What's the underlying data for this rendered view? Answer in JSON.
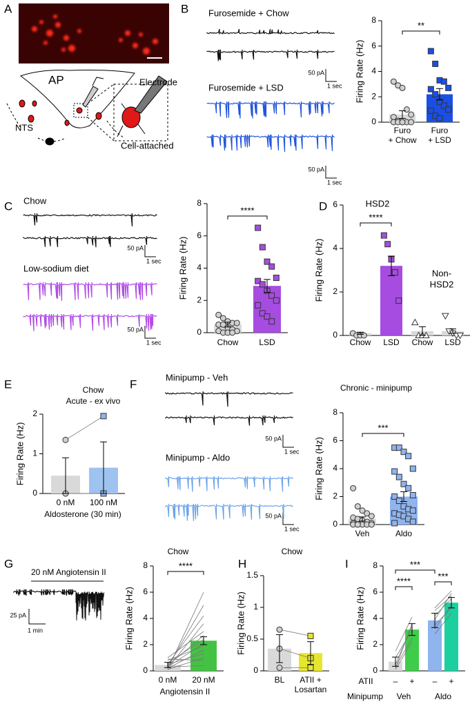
{
  "panel_labels": [
    "A",
    "B",
    "C",
    "D",
    "E",
    "F",
    "G",
    "H",
    "I"
  ],
  "diagram": {
    "labels": [
      "AP",
      "NTS",
      "Electrode",
      "Cell-attached"
    ]
  },
  "traces": [
    "Furosemide + Chow",
    "Furosemide + LSD",
    "Chow",
    "Low-sodium diet",
    "Minipump - Veh",
    "Minipump - Aldo",
    "20 nM Angiotensin II"
  ],
  "scale_bars": [
    {
      "amplitude": "50 pA",
      "time": "1 sec"
    },
    {
      "amplitude": "50 pA",
      "time": "1 sec"
    },
    {
      "amplitude": "50 pA",
      "time": "1 sec"
    },
    {
      "amplitude": "50 pA",
      "time": "1 sec"
    },
    {
      "amplitude": "50 pA",
      "time": "1 sec"
    },
    {
      "amplitude": "50 pA",
      "time": "1 sec"
    },
    {
      "amplitude": "25 pA",
      "time": "1 min"
    }
  ],
  "chart_data": [
    {
      "type": "bar",
      "ylabel": "Firing Rate (Hz)",
      "categories": [
        [
          "Furo",
          "+ Chow"
        ],
        [
          "Furo",
          "+ LSD"
        ]
      ],
      "values": [
        0.6,
        2.2
      ],
      "errors": [
        0.3,
        0.45
      ],
      "colors": [
        "#d9d9d9",
        "#1a4fe6"
      ],
      "points": [
        [
          3.2,
          2.9,
          2.7,
          1.0,
          0.6,
          0.4,
          0.1,
          0,
          0,
          0,
          0,
          0,
          0
        ],
        [
          5.6,
          4.6,
          3.3,
          3.2,
          2.7,
          2.6,
          2.2,
          1.6,
          1.3,
          1.0,
          0.9,
          0.5,
          0.3
        ]
      ],
      "markers": [
        "circle",
        "square"
      ],
      "point_colors": [
        "#d0d0d0",
        "#1a4fe6"
      ],
      "ylim": [
        0,
        8
      ],
      "yticks": [
        0,
        2,
        4,
        6,
        8
      ],
      "significance": [
        {
          "groups": [
            0,
            1
          ],
          "label": "**"
        }
      ]
    },
    {
      "type": "bar",
      "ylabel": "Firing Rate (Hz)",
      "categories": [
        "Chow",
        "LSD"
      ],
      "values": [
        0.5,
        2.9
      ],
      "errors": [
        0.15,
        0.4
      ],
      "colors": [
        "#d9d9d9",
        "#a64ce0"
      ],
      "points": [
        [
          1.1,
          0.9,
          0.7,
          0.6,
          0.6,
          0.5,
          0.5,
          0.3,
          0.2,
          0.1,
          0.1,
          0,
          0,
          0
        ],
        [
          6.5,
          5.3,
          4.4,
          4.1,
          3.4,
          3.2,
          3.0,
          2.6,
          2.3,
          2.0,
          1.7,
          1.2,
          1.0,
          0.7
        ]
      ],
      "markers": [
        "circle",
        "square"
      ],
      "point_colors": [
        "#d0d0d0",
        "#a64ce0"
      ],
      "ylim": [
        0,
        8
      ],
      "yticks": [
        0,
        2,
        4,
        6,
        8
      ],
      "significance": [
        {
          "groups": [
            0,
            1
          ],
          "label": "****"
        }
      ]
    },
    {
      "type": "bar",
      "ylabel": "Firing Rate (Hz)",
      "categories": [
        "Chow",
        "LSD",
        "Chow",
        "LSD"
      ],
      "values": [
        0.1,
        3.2,
        0.2,
        0.2
      ],
      "errors": [
        0.05,
        0.45,
        0.2,
        0.1
      ],
      "colors": [
        "#d9d9d9",
        "#a64ce0",
        "#d9d9d9",
        "#d9d9d9"
      ],
      "points": [
        [
          0.1,
          0,
          0,
          0
        ],
        [
          4.6,
          4.2,
          3.5,
          2.9,
          1.6
        ],
        [
          0.6,
          0,
          0,
          0
        ],
        [
          0.9,
          0.2,
          0.1,
          0,
          0
        ]
      ],
      "markers": [
        "circle",
        "square",
        "triangle-up",
        "triangle-down"
      ],
      "point_colors": [
        "#d0d0d0",
        "#a64ce0",
        "#ffffff",
        "#ffffff"
      ],
      "ylim": [
        0,
        6
      ],
      "yticks": [
        0,
        2,
        4,
        6
      ],
      "significance": [
        {
          "groups": [
            0,
            1
          ],
          "label": "****"
        }
      ],
      "annotations": [
        [
          "HSD2"
        ],
        [
          "Non-",
          "HSD2"
        ]
      ]
    },
    {
      "type": "bar",
      "title": "Chow",
      "subtitle": "Acute - ex vivo",
      "ylabel": "Firing Rate (Hz)",
      "xlabel": "Aldosterone (30 min)",
      "categories": [
        "0 nM",
        "100 nM"
      ],
      "values": [
        0.45,
        0.65
      ],
      "errors": [
        0.45,
        0.65
      ],
      "colors": [
        "#d9d9d9",
        "#9fc3f0"
      ],
      "points": [
        [
          1.35,
          0,
          0
        ],
        [
          1.95,
          0,
          0
        ]
      ],
      "markers": [
        "circle",
        "square"
      ],
      "point_colors": [
        "#d0d0d0",
        "#8fb4ee"
      ],
      "pairs": [
        [
          0,
          1
        ]
      ],
      "ylim": [
        0,
        2
      ],
      "yticks": [
        0,
        1,
        2
      ]
    },
    {
      "type": "bar",
      "title": "Chronic - minipump",
      "ylabel": "Firing Rate (Hz)",
      "categories": [
        "Veh",
        "Aldo"
      ],
      "values": [
        0.4,
        2.0
      ],
      "errors": [
        0.15,
        0.35
      ],
      "colors": [
        "#d9d9d9",
        "#8fb4ee"
      ],
      "points": [
        [
          2.6,
          1.3,
          1.0,
          0.8,
          0.6,
          0.5,
          0.4,
          0.3,
          0.2,
          0.1,
          0.1,
          0,
          0,
          0,
          0,
          0,
          0
        ],
        [
          5.5,
          5.5,
          5.2,
          4.9,
          4.0,
          3.8,
          3.4,
          2.9,
          2.6,
          2.1,
          2.0,
          1.7,
          1.3,
          1.1,
          1.0,
          0.8,
          0.7,
          0.6,
          0.4,
          0.2,
          0.1
        ]
      ],
      "markers": [
        "circle",
        "square"
      ],
      "point_colors": [
        "#d0d0d0",
        "#8fb4ee"
      ],
      "ylim": [
        0,
        8
      ],
      "yticks": [
        0,
        2,
        4,
        6,
        8
      ],
      "significance": [
        {
          "groups": [
            0,
            1
          ],
          "label": "***"
        }
      ]
    },
    {
      "type": "bar",
      "title": "Chow",
      "ylabel": "Firing Rate (Hz)",
      "xlabel": "Angiotensin II",
      "categories": [
        "0 nM",
        "20 nM"
      ],
      "values": [
        0.45,
        2.3
      ],
      "errors": [
        0.2,
        0.3
      ],
      "colors": [
        "#d9d9d9",
        "#44c244"
      ],
      "points": [
        [
          0.1,
          0.3,
          0.5,
          0.2,
          1.0,
          0.4,
          0.6,
          0.3,
          0.8,
          0.2,
          0.5,
          0.1,
          0.9,
          0.3
        ],
        [
          6.0,
          5.0,
          4.2,
          3.6,
          3.0,
          2.7,
          2.4,
          2.1,
          1.9,
          1.6,
          1.3,
          1.0,
          0.8,
          0.4
        ]
      ],
      "pairs": [
        [
          0,
          1
        ]
      ],
      "ylim": [
        0,
        8
      ],
      "yticks": [
        0,
        2,
        4,
        6,
        8
      ],
      "significance": [
        {
          "groups": [
            0,
            1
          ],
          "label": "****"
        }
      ]
    },
    {
      "type": "bar",
      "title": "Chow",
      "ylabel": "Firing Rate (Hz)",
      "categories": [
        [
          "BL"
        ],
        [
          "ATII +",
          "Losartan"
        ]
      ],
      "values": [
        0.35,
        0.28
      ],
      "errors": [
        0.22,
        0.18
      ],
      "colors": [
        "#d9d9d9",
        "#e6e62e"
      ],
      "points": [
        [
          0.65,
          0.35,
          0.05
        ],
        [
          0.55,
          0.2,
          0.05
        ]
      ],
      "markers": [
        "circle",
        "square"
      ],
      "point_colors": [
        "#d0d0d0",
        "#e6e62e"
      ],
      "pairs": [
        [
          0,
          1
        ]
      ],
      "ylim": [
        0,
        1.5
      ],
      "yticks": [
        0,
        0.5,
        1,
        1.5
      ]
    },
    {
      "type": "bar",
      "ylabel": "Firing Rate (Hz)",
      "categories": [
        "–",
        "+",
        "–",
        "+"
      ],
      "row_labels": [
        "ATII",
        "Minipump"
      ],
      "groups": [
        "Veh",
        "Aldo"
      ],
      "values": [
        0.7,
        3.15,
        3.85,
        5.2
      ],
      "errors": [
        0.35,
        0.45,
        0.55,
        0.4
      ],
      "colors": [
        "#d9d9d9",
        "#3fcc4a",
        "#8fb4ee",
        "#1ccf9f"
      ],
      "points": [
        [
          0.2,
          0.5,
          1.0,
          1.5,
          0.3,
          0.1
        ],
        [
          3.6,
          3.4,
          3.1,
          4.1,
          2.5,
          2.2
        ],
        [
          4.6,
          4.8,
          3.9,
          3.2,
          2.8,
          3.5,
          4.2
        ],
        [
          5.7,
          6.1,
          5.9,
          5.0,
          4.4,
          4.8,
          5.5
        ]
      ],
      "pairs": [
        [
          0,
          1
        ],
        [
          2,
          3
        ]
      ],
      "ylim": [
        0,
        8
      ],
      "yticks": [
        0,
        2,
        4,
        6,
        8
      ],
      "significance": [
        {
          "groups": [
            0,
            1
          ],
          "label": "****"
        },
        {
          "groups": [
            2,
            3
          ],
          "label": "***"
        },
        {
          "groups": [
            0,
            2
          ],
          "label": "***"
        }
      ]
    }
  ]
}
